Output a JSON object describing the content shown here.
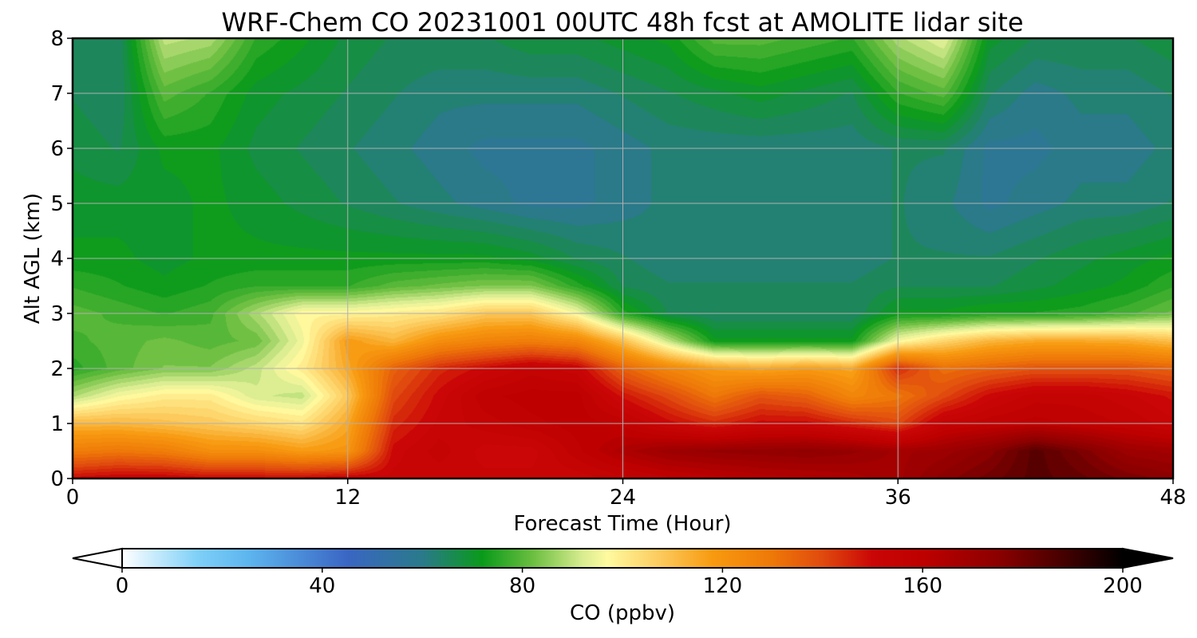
{
  "chart_data": {
    "type": "heatmap",
    "title": "WRF-Chem CO  20231001 00UTC 48h fcst at AMOLITE lidar site",
    "xlabel": "Forecast Time (Hour)",
    "ylabel": "Alt AGL (km)",
    "xlim": [
      0,
      48
    ],
    "ylim": [
      0,
      8
    ],
    "x_ticks": [
      0,
      12,
      24,
      36,
      48
    ],
    "x_tick_labels": [
      "0",
      "12",
      "24",
      "36",
      "48"
    ],
    "y_ticks": [
      0,
      1,
      2,
      3,
      4,
      5,
      6,
      7,
      8
    ],
    "y_tick_labels": [
      "0",
      "1",
      "2",
      "3",
      "4",
      "5",
      "6",
      "7",
      "8"
    ],
    "grid": true,
    "colorbar": {
      "label": "CO  (ppbv)",
      "range": [
        0,
        200
      ],
      "extend": "both",
      "ticks": [
        0,
        40,
        80,
        120,
        160,
        200
      ],
      "tick_labels": [
        "0",
        "40",
        "80",
        "120",
        "160",
        "200"
      ],
      "colors": [
        {
          "value": 0,
          "color": "#ffffff"
        },
        {
          "value": 15,
          "color": "#7fd0f8"
        },
        {
          "value": 25,
          "color": "#5eb6ef"
        },
        {
          "value": 45,
          "color": "#3a66c4"
        },
        {
          "value": 60,
          "color": "#2a7a8a"
        },
        {
          "value": 72,
          "color": "#0a9a1a"
        },
        {
          "value": 82,
          "color": "#6abe40"
        },
        {
          "value": 92,
          "color": "#d8ec90"
        },
        {
          "value": 97,
          "color": "#fffaa0"
        },
        {
          "value": 108,
          "color": "#fcc85a"
        },
        {
          "value": 118,
          "color": "#f89a10"
        },
        {
          "value": 130,
          "color": "#ee7808"
        },
        {
          "value": 140,
          "color": "#e04a0e"
        },
        {
          "value": 150,
          "color": "#ca0606"
        },
        {
          "value": 160,
          "color": "#be0000"
        },
        {
          "value": 175,
          "color": "#8c0000"
        },
        {
          "value": 188,
          "color": "#460000"
        },
        {
          "value": 200,
          "color": "#000000"
        }
      ]
    },
    "x": [
      0,
      2,
      4,
      6,
      8,
      10,
      12,
      14,
      16,
      18,
      20,
      22,
      24,
      26,
      28,
      30,
      32,
      34,
      36,
      38,
      40,
      42,
      44,
      46,
      48
    ],
    "y": [
      0,
      0.5,
      1,
      1.5,
      2,
      2.5,
      3,
      3.5,
      4,
      5,
      6,
      7,
      8
    ],
    "values": [
      [
        150,
        152,
        152,
        150,
        150,
        150,
        152,
        152,
        152,
        152,
        152,
        152,
        155,
        158,
        160,
        162,
        163,
        165,
        168,
        175,
        180,
        185,
        182,
        178,
        175
      ],
      [
        128,
        130,
        128,
        122,
        122,
        118,
        120,
        150,
        155,
        150,
        150,
        158,
        165,
        170,
        172,
        173,
        174,
        172,
        168,
        170,
        175,
        185,
        178,
        170,
        168
      ],
      [
        112,
        112,
        110,
        108,
        105,
        102,
        115,
        145,
        152,
        155,
        158,
        160,
        158,
        150,
        145,
        150,
        150,
        145,
        140,
        155,
        158,
        160,
        158,
        156,
        152
      ],
      [
        88,
        96,
        100,
        100,
        92,
        90,
        108,
        140,
        150,
        158,
        160,
        160,
        148,
        140,
        130,
        138,
        135,
        125,
        130,
        140,
        150,
        155,
        155,
        152,
        148
      ],
      [
        75,
        80,
        84,
        84,
        90,
        100,
        115,
        135,
        145,
        150,
        155,
        152,
        135,
        125,
        118,
        115,
        118,
        115,
        145,
        132,
        135,
        138,
        138,
        138,
        135
      ],
      [
        78,
        80,
        82,
        80,
        82,
        95,
        118,
        112,
        122,
        126,
        128,
        125,
        110,
        90,
        72,
        72,
        72,
        72,
        96,
        105,
        112,
        115,
        115,
        114,
        110
      ],
      [
        80,
        78,
        76,
        78,
        88,
        98,
        98,
        100,
        102,
        108,
        108,
        96,
        75,
        66,
        64,
        64,
        64,
        64,
        72,
        72,
        74,
        74,
        75,
        78,
        82
      ],
      [
        76,
        74,
        72,
        74,
        76,
        76,
        76,
        80,
        82,
        84,
        84,
        75,
        66,
        64,
        64,
        64,
        64,
        64,
        66,
        66,
        66,
        68,
        70,
        72,
        76
      ],
      [
        72,
        72,
        70,
        72,
        72,
        72,
        72,
        72,
        72,
        72,
        70,
        66,
        64,
        62,
        62,
        62,
        62,
        62,
        64,
        64,
        64,
        66,
        68,
        70,
        72
      ],
      [
        70,
        70,
        70,
        72,
        70,
        68,
        66,
        64,
        62,
        60,
        58,
        58,
        60,
        62,
        62,
        62,
        62,
        62,
        64,
        62,
        58,
        60,
        62,
        62,
        64
      ],
      [
        68,
        66,
        72,
        72,
        68,
        66,
        64,
        62,
        60,
        58,
        58,
        58,
        60,
        62,
        62,
        62,
        62,
        62,
        64,
        64,
        58,
        58,
        60,
        60,
        62
      ],
      [
        66,
        64,
        80,
        76,
        70,
        68,
        66,
        64,
        62,
        62,
        62,
        62,
        64,
        66,
        68,
        70,
        68,
        66,
        76,
        80,
        64,
        60,
        62,
        62,
        64
      ],
      [
        66,
        64,
        90,
        88,
        76,
        72,
        68,
        66,
        66,
        66,
        68,
        68,
        70,
        72,
        80,
        80,
        78,
        76,
        88,
        94,
        70,
        66,
        66,
        66,
        68
      ]
    ]
  }
}
